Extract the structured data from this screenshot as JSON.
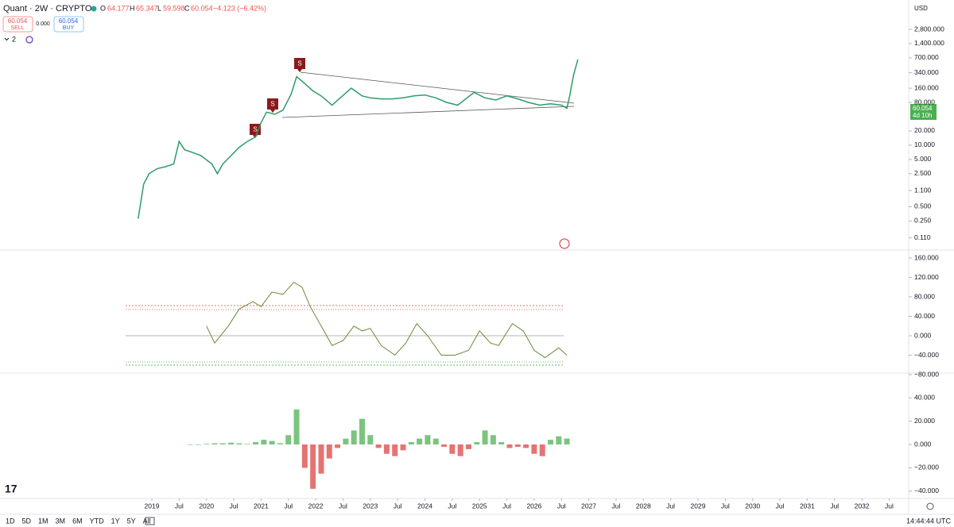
{
  "header": {
    "symbol": "Quant · 2W · CRYPTO",
    "o_label": "O",
    "open": "64.177",
    "h_label": "H",
    "high": "65.347",
    "l_label": "L",
    "low": "59.598",
    "c_label": "C",
    "close": "60.054",
    "change": "−4.123 (−6.42%)",
    "sell_price": "60.054",
    "sell": "SELL",
    "spread": "0.000",
    "buy_price": "60.054",
    "buy": "BUY",
    "indicators": "2",
    "currency": "USD"
  },
  "price_tag": {
    "price": "60.054",
    "countdown": "4d 10h"
  },
  "footer": {
    "ranges": [
      "1D",
      "5D",
      "1M",
      "3M",
      "6M",
      "YTD",
      "1Y",
      "5Y",
      "All"
    ],
    "clock": "14:44:44 UTC"
  },
  "time_axis": {
    "ticks": [
      2019,
      {
        "value": 2019.5,
        "label": "Jul"
      },
      2020,
      {
        "value": 2020.5,
        "label": "Jul"
      },
      2021,
      {
        "value": 2021.5,
        "label": "Jul"
      },
      2022,
      {
        "value": 2022.5,
        "label": "Jul"
      },
      2023,
      {
        "value": 2023.5,
        "label": "Jul"
      },
      2024,
      {
        "value": 2024.5,
        "label": "Jul"
      },
      2025,
      {
        "value": 2025.5,
        "label": "Jul"
      },
      2026,
      {
        "value": 2026.5,
        "label": "Jul"
      },
      2027,
      {
        "value": 2027.5,
        "label": "Jul"
      },
      2028,
      {
        "value": 2028.5,
        "label": "Jul"
      },
      2029,
      {
        "value": 2029.5,
        "label": "Jul"
      },
      2030,
      {
        "value": 2030.5,
        "label": "Jul"
      },
      2031,
      {
        "value": 2031.5,
        "label": "Jul"
      },
      2032,
      {
        "value": 2032.5,
        "label": "Jul"
      }
    ]
  },
  "chart_data": [
    {
      "type": "line",
      "log_scale": true,
      "color": "#2e9b6a",
      "x": [
        2018.75,
        2018.85,
        2018.95,
        2019.1,
        2019.25,
        2019.4,
        2019.5,
        2019.6,
        2019.75,
        2019.9,
        2020.1,
        2020.2,
        2020.3,
        2020.45,
        2020.6,
        2020.75,
        2020.9,
        2021.0,
        2021.1,
        2021.25,
        2021.4,
        2021.55,
        2021.65,
        2021.8,
        2021.95,
        2022.1,
        2022.3,
        2022.45,
        2022.65,
        2022.85,
        2023.0,
        2023.2,
        2023.4,
        2023.6,
        2023.8,
        2024.0,
        2024.2,
        2024.4,
        2024.6,
        2024.9,
        2025.1,
        2025.3,
        2025.5,
        2025.7,
        2025.9,
        2026.1,
        2026.3,
        2026.5,
        2026.6,
        2026.65,
        2026.72,
        2026.8
      ],
      "values": [
        0.28,
        1.5,
        2.5,
        3.2,
        3.5,
        4,
        12,
        8,
        7,
        6,
        4,
        2.5,
        4,
        6,
        9,
        12,
        15,
        30,
        50,
        45,
        55,
        120,
        280,
        200,
        140,
        110,
        70,
        100,
        160,
        110,
        100,
        95,
        95,
        100,
        110,
        115,
        100,
        80,
        70,
        130,
        100,
        90,
        110,
        95,
        80,
        70,
        75,
        70,
        60,
        110,
        300,
        650
      ],
      "yticks": [
        {
          "value": 2800,
          "label": "2,800.000"
        },
        {
          "value": 1400,
          "label": "1,400.000"
        },
        {
          "value": 700,
          "label": "700.000"
        },
        {
          "value": 340,
          "label": "340.000"
        },
        {
          "value": 160,
          "label": "160.000"
        },
        {
          "value": 80,
          "label": "80.000"
        },
        {
          "value": 20,
          "label": "20.000"
        },
        {
          "value": 10,
          "label": "10.000"
        },
        {
          "value": 5,
          "label": "5.000"
        },
        {
          "value": 2.5,
          "label": "2.500"
        },
        {
          "value": 1.1,
          "label": "1.100"
        },
        {
          "value": 0.5,
          "label": "0.500"
        },
        {
          "value": 0.25,
          "label": "0.250"
        },
        {
          "value": 0.11,
          "label": "0.110"
        }
      ]
    },
    {
      "type": "line",
      "color": "#6b8a3a",
      "x": [
        2020.0,
        2020.15,
        2020.4,
        2020.6,
        2020.85,
        2021.0,
        2021.2,
        2021.4,
        2021.6,
        2021.75,
        2021.9,
        2022.1,
        2022.3,
        2022.5,
        2022.7,
        2022.85,
        2023.0,
        2023.2,
        2023.45,
        2023.65,
        2023.85,
        2024.05,
        2024.3,
        2024.55,
        2024.8,
        2025.0,
        2025.2,
        2025.35,
        2025.6,
        2025.8,
        2026.0,
        2026.2,
        2026.45,
        2026.6
      ],
      "values": [
        20,
        -15,
        20,
        55,
        70,
        60,
        90,
        85,
        110,
        100,
        60,
        20,
        -20,
        -10,
        20,
        10,
        15,
        -20,
        -40,
        -15,
        25,
        0,
        -40,
        -40,
        -30,
        10,
        -15,
        -20,
        25,
        10,
        -30,
        -45,
        -25,
        -40
      ],
      "yticks": [
        {
          "value": 160,
          "label": "160.000"
        },
        {
          "value": 120,
          "label": "120.000"
        },
        {
          "value": 80,
          "label": "80.000"
        },
        {
          "value": 40,
          "label": "40.000"
        },
        {
          "value": 0,
          "label": "0.000"
        },
        {
          "value": -40,
          "label": "−40.000"
        },
        {
          "value": -80,
          "label": "−80.000"
        }
      ]
    },
    {
      "type": "histogram_bars",
      "up_color": "#7bc47f",
      "down_color": "#e57373",
      "x": [
        2019.7,
        2019.85,
        2020.0,
        2020.15,
        2020.3,
        2020.45,
        2020.6,
        2020.75,
        2020.9,
        2021.05,
        2021.2,
        2021.35,
        2021.5,
        2021.65,
        2021.8,
        2021.95,
        2022.1,
        2022.25,
        2022.4,
        2022.55,
        2022.7,
        2022.85,
        2023.0,
        2023.15,
        2023.3,
        2023.45,
        2023.6,
        2023.75,
        2023.9,
        2024.05,
        2024.2,
        2024.35,
        2024.5,
        2024.65,
        2024.8,
        2024.95,
        2025.1,
        2025.25,
        2025.4,
        2025.55,
        2025.7,
        2025.85,
        2026.0,
        2026.15,
        2026.3,
        2026.45,
        2026.6
      ],
      "values": [
        0,
        0,
        0.5,
        1,
        1,
        1.5,
        1,
        0.5,
        2,
        4,
        3,
        1,
        8,
        30,
        -20,
        -38,
        -25,
        -12,
        -3,
        5,
        12,
        22,
        8,
        -3,
        -8,
        -10,
        -5,
        2,
        5,
        8,
        5,
        -2,
        -8,
        -10,
        -4,
        2,
        12,
        8,
        2,
        -3,
        -2,
        -3,
        -8,
        -10,
        4,
        7,
        5
      ],
      "yticks": [
        {
          "value": 40,
          "label": "40.000"
        },
        {
          "value": 20,
          "label": "20.000"
        },
        {
          "value": 0,
          "label": "0.000"
        },
        {
          "value": -20,
          "label": "−20.000"
        },
        {
          "value": -40,
          "label": "−40.000"
        }
      ]
    }
  ]
}
